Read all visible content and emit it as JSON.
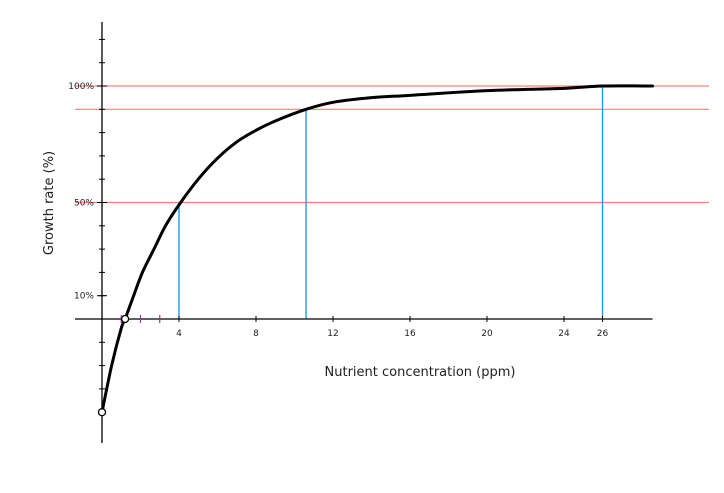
{
  "chart_data": {
    "type": "line",
    "xlabel": "Nutrient concentration (ppm)",
    "ylabel": "Growth rate (%)",
    "xlim": [
      -1,
      28.6
    ],
    "ylim": [
      -40,
      140
    ],
    "x_ticks": [
      4,
      8,
      12,
      16,
      20,
      24,
      26
    ],
    "y_tick_labels": [
      {
        "value": 100,
        "label": "100%"
      },
      {
        "value": 50,
        "label": "50%"
      },
      {
        "value": 10,
        "label": "10%"
      }
    ],
    "y_minor_ticks": [
      -30,
      -20,
      -10,
      10,
      20,
      30,
      40,
      50,
      60,
      70,
      80,
      90,
      100,
      110,
      120
    ],
    "x_minor_ticks": [
      1,
      2,
      3
    ],
    "series": [
      {
        "name": "",
        "color": "#000000",
        "points": [
          {
            "x": 0,
            "y": -40
          },
          {
            "x": 0.5,
            "y": -20
          },
          {
            "x": 1.0,
            "y": -4
          },
          {
            "x": 1.2,
            "y": 0
          },
          {
            "x": 1.6,
            "y": 9
          },
          {
            "x": 2.1,
            "y": 20
          },
          {
            "x": 2.7,
            "y": 30
          },
          {
            "x": 3.3,
            "y": 40
          },
          {
            "x": 4.0,
            "y": 49
          },
          {
            "x": 5.0,
            "y": 60
          },
          {
            "x": 6.0,
            "y": 69
          },
          {
            "x": 7.0,
            "y": 76
          },
          {
            "x": 8.0,
            "y": 81
          },
          {
            "x": 9.0,
            "y": 85
          },
          {
            "x": 10.6,
            "y": 90
          },
          {
            "x": 12.0,
            "y": 93
          },
          {
            "x": 14.0,
            "y": 95
          },
          {
            "x": 16.0,
            "y": 96
          },
          {
            "x": 20.0,
            "y": 98
          },
          {
            "x": 24.0,
            "y": 99
          },
          {
            "x": 26.0,
            "y": 100
          },
          {
            "x": 28.6,
            "y": 100
          }
        ]
      }
    ],
    "horizontal_reference_lines": [
      {
        "y": 100,
        "color": "#f08080"
      },
      {
        "y": 90,
        "color": "#f08080"
      },
      {
        "y": 50,
        "color": "#f08080"
      }
    ],
    "vertical_reference_lines": [
      {
        "x": 4,
        "y": 50,
        "color": "#1a9fe0"
      },
      {
        "x": 10.6,
        "y": 90,
        "color": "#1a9fe0"
      },
      {
        "x": 26,
        "y": 100,
        "color": "#1a9fe0"
      }
    ],
    "open_markers": [
      {
        "x": 0,
        "y": -40
      },
      {
        "x": 1.2,
        "y": 0
      }
    ],
    "minor_tick_color": "#8b3a8b",
    "grid": false
  }
}
